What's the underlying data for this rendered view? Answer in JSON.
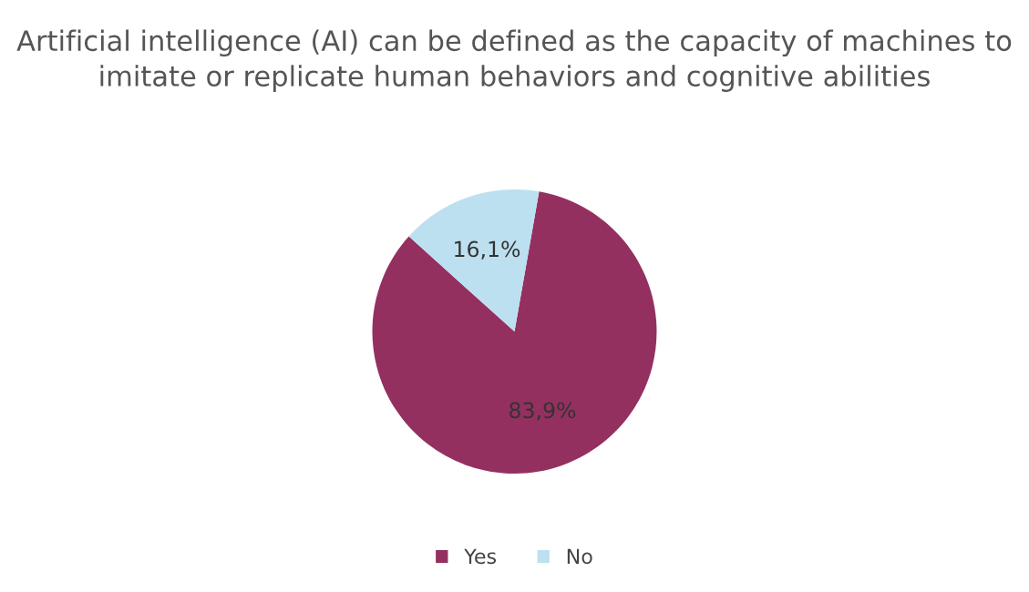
{
  "chart_data": {
    "type": "pie",
    "title": "Artificial intelligence (AI) can be defined as the capacity of machines to imitate or replicate human behaviors and cognitive abilities",
    "categories": [
      "Yes",
      "No"
    ],
    "values": [
      83.9,
      16.1
    ],
    "colors": [
      "#943060",
      "#bde0f0"
    ],
    "value_labels": [
      "83,9%",
      "16,1%"
    ],
    "legend": "bottom"
  }
}
